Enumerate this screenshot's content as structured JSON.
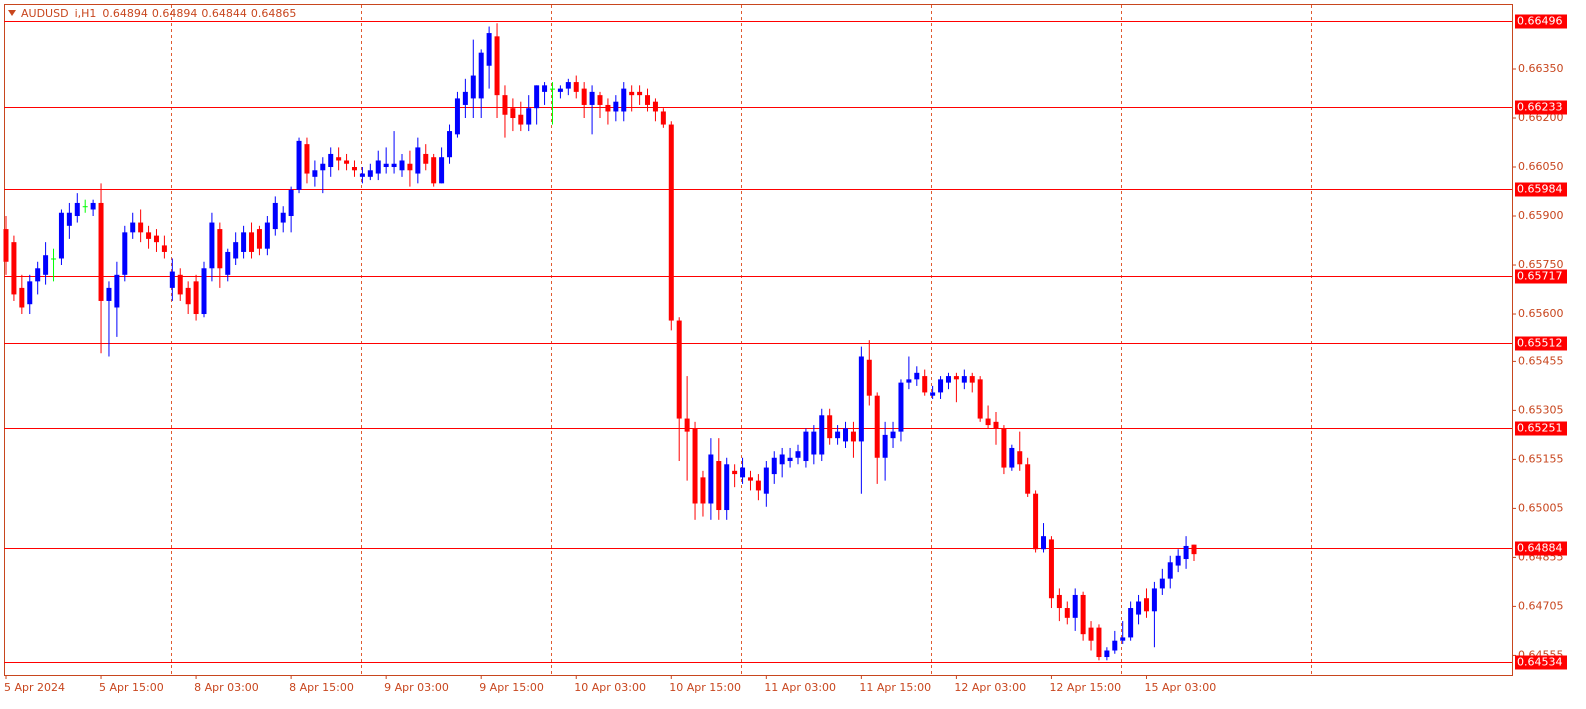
{
  "chart_data": {
    "type": "candlestick",
    "symbol": "AUDUSD",
    "timeframe": "i,H1",
    "up_color": "#0000ff",
    "down_color": "#ff0000",
    "doji_color": "#00ff00",
    "level_color": "#ff0000",
    "ylim": [
      0.64495,
      0.66549
    ],
    "yticks": [
      {
        "value": 0.6635,
        "label": "0.66350"
      },
      {
        "value": 0.662,
        "label": "0.66200"
      },
      {
        "value": 0.6605,
        "label": "0.66050"
      },
      {
        "value": 0.659,
        "label": "0.65900"
      },
      {
        "value": 0.6575,
        "label": "0.65750"
      },
      {
        "value": 0.656,
        "label": "0.65600"
      },
      0.65455,
      0.65305,
      0.65155,
      0.65005,
      0.64855,
      0.64705,
      0.64555
    ],
    "levels": [
      0.66496,
      0.66233,
      0.65984,
      0.65717,
      0.65512,
      0.65251,
      0.64884,
      0.64534
    ],
    "categories": [
      "5 Apr 2024",
      null,
      null,
      null,
      null,
      null,
      null,
      null,
      null,
      null,
      null,
      null,
      "5 Apr 15:00",
      null,
      null,
      null,
      null,
      null,
      null,
      null,
      null,
      null,
      null,
      null,
      "8 Apr 03:00",
      null,
      null,
      null,
      null,
      null,
      null,
      null,
      null,
      null,
      null,
      null,
      "8 Apr 15:00",
      null,
      null,
      null,
      null,
      null,
      null,
      null,
      null,
      null,
      null,
      null,
      "9 Apr 03:00",
      null,
      null,
      null,
      null,
      null,
      null,
      null,
      null,
      null,
      null,
      null,
      "9 Apr 15:00",
      null,
      null,
      null,
      null,
      null,
      null,
      null,
      null,
      null,
      null,
      null,
      "10 Apr 03:00",
      null,
      null,
      null,
      null,
      null,
      null,
      null,
      null,
      null,
      null,
      null,
      "10 Apr 15:00",
      null,
      null,
      null,
      null,
      null,
      null,
      null,
      null,
      null,
      null,
      null,
      "11 Apr 03:00",
      null,
      null,
      null,
      null,
      null,
      null,
      null,
      null,
      null,
      null,
      null,
      "11 Apr 15:00",
      null,
      null,
      null,
      null,
      null,
      null,
      null,
      null,
      null,
      null,
      null,
      "12 Apr 03:00",
      null,
      null,
      null,
      null,
      null,
      null,
      null,
      null,
      null,
      null,
      null,
      "12 Apr 15:00",
      null,
      null,
      null,
      null,
      null,
      null,
      null,
      null,
      null,
      null,
      null,
      "15 Apr 03:00",
      null,
      null,
      null,
      null,
      null,
      null
    ],
    "open": [
      0.6586,
      0.6582,
      0.6568,
      0.6563,
      0.657,
      0.6572,
      0.6577,
      0.6577,
      0.6587,
      0.659,
      0.6593,
      0.6592,
      0.6594,
      0.6564,
      0.6562,
      0.6572,
      0.6585,
      0.6588,
      0.6585,
      0.6584,
      0.6581,
      0.6568,
      0.6572,
      0.6568,
      0.657,
      0.656,
      0.6574,
      0.6586,
      0.6572,
      0.6577,
      0.6579,
      0.6585,
      0.6586,
      0.658,
      0.6586,
      0.6588,
      0.659,
      0.6598,
      0.6612,
      0.6602,
      0.6604,
      0.6605,
      0.6608,
      0.6607,
      0.6605,
      0.6602,
      0.6602,
      0.6603,
      0.6605,
      0.6605,
      0.6604,
      0.6606,
      0.6603,
      0.6609,
      0.6608,
      0.66,
      0.6608,
      0.6615,
      0.6624,
      0.6626,
      0.6626,
      0.6636,
      0.6645,
      0.6627,
      0.6623,
      0.6621,
      0.6618,
      0.6623,
      0.6628,
      0.6629,
      0.6628,
      0.6629,
      0.6631,
      0.6629,
      0.6624,
      0.6627,
      0.6624,
      0.6622,
      0.6622,
      0.6628,
      0.6628,
      0.6627,
      0.6625,
      0.6622,
      0.6618,
      0.6558,
      0.6528,
      0.6525,
      0.651,
      0.6502,
      0.6515,
      0.65,
      0.6512,
      0.651,
      0.651,
      0.6509,
      0.6505,
      0.6511,
      0.6514,
      0.6515,
      0.6516,
      0.6515,
      0.6517,
      0.6517,
      0.6529,
      0.6522,
      0.6521,
      0.6524,
      0.6521,
      0.6546,
      0.6535,
      0.6516,
      0.6522,
      0.6524,
      0.6539,
      0.654,
      0.6541,
      0.6535,
      0.6536,
      0.6539,
      0.6541,
      0.6539,
      0.6541,
      0.654,
      0.6528,
      0.6527,
      0.6525,
      0.6513,
      0.6518,
      0.6514,
      0.6505,
      0.6488,
      0.6491,
      0.6474,
      0.647,
      0.6467,
      0.6474,
      0.6464,
      0.6464,
      0.6455,
      0.6457,
      0.646,
      0.6461,
      0.6468,
      0.6473,
      0.6469,
      0.6476,
      0.6479,
      0.6483,
      0.6485,
      0.64894
    ],
    "high": [
      0.659,
      0.6584,
      0.6572,
      0.6572,
      0.6576,
      0.6582,
      0.658,
      0.6592,
      0.6594,
      0.6597,
      0.6595,
      0.6595,
      0.66,
      0.657,
      0.6576,
      0.6587,
      0.6591,
      0.6592,
      0.6587,
      0.6586,
      0.6584,
      0.6577,
      0.6574,
      0.657,
      0.6572,
      0.6576,
      0.6591,
      0.6588,
      0.658,
      0.6585,
      0.6587,
      0.6588,
      0.6587,
      0.659,
      0.6596,
      0.6593,
      0.6599,
      0.6614,
      0.6614,
      0.6607,
      0.6608,
      0.6611,
      0.6611,
      0.6609,
      0.6607,
      0.6605,
      0.6606,
      0.661,
      0.6611,
      0.6616,
      0.6609,
      0.661,
      0.6614,
      0.6612,
      0.6609,
      0.6611,
      0.6618,
      0.6628,
      0.6632,
      0.6644,
      0.6641,
      0.6648,
      0.6649,
      0.663,
      0.6626,
      0.6625,
      0.6627,
      0.663,
      0.6631,
      0.6631,
      0.663,
      0.6632,
      0.6633,
      0.6631,
      0.663,
      0.6628,
      0.6626,
      0.6627,
      0.6631,
      0.663,
      0.663,
      0.6629,
      0.6626,
      0.6623,
      0.6619,
      0.6559,
      0.6541,
      0.6527,
      0.6512,
      0.6522,
      0.6522,
      0.6516,
      0.6514,
      0.6516,
      0.6512,
      0.6511,
      0.6515,
      0.6518,
      0.6519,
      0.6519,
      0.652,
      0.6525,
      0.6526,
      0.6531,
      0.6531,
      0.6526,
      0.6527,
      0.6527,
      0.655,
      0.6552,
      0.6536,
      0.6527,
      0.6527,
      0.654,
      0.6547,
      0.6544,
      0.6543,
      0.6538,
      0.6541,
      0.6542,
      0.6542,
      0.6543,
      0.6542,
      0.6541,
      0.6532,
      0.653,
      0.6526,
      0.652,
      0.6524,
      0.6516,
      0.6506,
      0.6496,
      0.6492,
      0.6476,
      0.6472,
      0.6476,
      0.6475,
      0.6466,
      0.6465,
      0.6458,
      0.6463,
      0.6466,
      0.6472,
      0.6474,
      0.6476,
      0.6478,
      0.6482,
      0.6486,
      0.6488,
      0.6492,
      0.64894
    ],
    "low": [
      0.6572,
      0.6564,
      0.656,
      0.656,
      0.6566,
      0.6569,
      0.657,
      0.6575,
      0.6583,
      0.6588,
      0.6591,
      0.659,
      0.6548,
      0.6547,
      0.6553,
      0.657,
      0.6583,
      0.6582,
      0.658,
      0.6579,
      0.6577,
      0.6564,
      0.6564,
      0.656,
      0.6558,
      0.6559,
      0.657,
      0.6568,
      0.657,
      0.6575,
      0.6577,
      0.6577,
      0.6578,
      0.6578,
      0.6584,
      0.6585,
      0.6585,
      0.6597,
      0.66,
      0.6599,
      0.6597,
      0.6602,
      0.6604,
      0.6604,
      0.6602,
      0.66,
      0.6601,
      0.6601,
      0.6603,
      0.6603,
      0.6602,
      0.6599,
      0.66,
      0.6604,
      0.6599,
      0.66,
      0.6606,
      0.6614,
      0.662,
      0.662,
      0.662,
      0.6629,
      0.662,
      0.6614,
      0.6616,
      0.6616,
      0.6616,
      0.6618,
      0.6624,
      0.6618,
      0.6626,
      0.6627,
      0.6626,
      0.662,
      0.6615,
      0.662,
      0.6618,
      0.6619,
      0.6619,
      0.6622,
      0.6624,
      0.6622,
      0.6619,
      0.6617,
      0.6555,
      0.6515,
      0.6509,
      0.6497,
      0.6498,
      0.6497,
      0.6497,
      0.6497,
      0.6507,
      0.6508,
      0.6506,
      0.6503,
      0.6501,
      0.6508,
      0.651,
      0.6513,
      0.6514,
      0.6513,
      0.6514,
      0.6515,
      0.652,
      0.652,
      0.6519,
      0.6516,
      0.6505,
      0.6532,
      0.6508,
      0.6509,
      0.6519,
      0.6521,
      0.6537,
      0.6538,
      0.6535,
      0.6534,
      0.6534,
      0.6537,
      0.6533,
      0.6537,
      0.6536,
      0.6527,
      0.6525,
      0.652,
      0.6511,
      0.6512,
      0.6512,
      0.6504,
      0.6487,
      0.6487,
      0.647,
      0.6466,
      0.6465,
      0.6463,
      0.646,
      0.6457,
      0.6454,
      0.6454,
      0.6456,
      0.6459,
      0.646,
      0.6465,
      0.6467,
      0.6458,
      0.6474,
      0.6476,
      0.6481,
      0.6482,
      0.64844
    ],
    "close": [
      0.6576,
      0.6566,
      0.6562,
      0.657,
      0.6574,
      0.6578,
      0.6577,
      0.6591,
      0.6591,
      0.6594,
      0.6593,
      0.6594,
      0.6564,
      0.6568,
      0.6572,
      0.6585,
      0.6588,
      0.6585,
      0.6583,
      0.6582,
      0.6579,
      0.6573,
      0.6566,
      0.6563,
      0.656,
      0.6574,
      0.6588,
      0.6574,
      0.6579,
      0.6582,
      0.6585,
      0.6579,
      0.658,
      0.6588,
      0.6594,
      0.6591,
      0.6598,
      0.6613,
      0.6603,
      0.6604,
      0.6606,
      0.6609,
      0.6607,
      0.6606,
      0.6604,
      0.6603,
      0.6604,
      0.6607,
      0.6606,
      0.6606,
      0.6607,
      0.6604,
      0.6611,
      0.6606,
      0.66,
      0.6608,
      0.6616,
      0.6626,
      0.6628,
      0.6633,
      0.664,
      0.6646,
      0.6627,
      0.6621,
      0.662,
      0.6618,
      0.6623,
      0.663,
      0.663,
      0.6629,
      0.6629,
      0.6631,
      0.6628,
      0.6624,
      0.6628,
      0.6624,
      0.6622,
      0.6625,
      0.6629,
      0.6627,
      0.6627,
      0.6624,
      0.6622,
      0.6618,
      0.6558,
      0.6528,
      0.6524,
      0.6502,
      0.6502,
      0.6517,
      0.65,
      0.6514,
      0.6511,
      0.6513,
      0.6509,
      0.6506,
      0.6513,
      0.6516,
      0.6517,
      0.6516,
      0.6518,
      0.6524,
      0.6524,
      0.6529,
      0.6522,
      0.6524,
      0.6525,
      0.6521,
      0.6547,
      0.6535,
      0.6516,
      0.6523,
      0.6524,
      0.6539,
      0.654,
      0.6542,
      0.6536,
      0.6536,
      0.654,
      0.6541,
      0.654,
      0.6541,
      0.6539,
      0.6528,
      0.6526,
      0.6525,
      0.6513,
      0.6519,
      0.6514,
      0.6505,
      0.6488,
      0.6492,
      0.6473,
      0.647,
      0.6467,
      0.6474,
      0.6462,
      0.646,
      0.6455,
      0.6457,
      0.646,
      0.6461,
      0.647,
      0.6472,
      0.6469,
      0.6476,
      0.6479,
      0.6484,
      0.6486,
      0.6489,
      0.64865
    ]
  }
}
